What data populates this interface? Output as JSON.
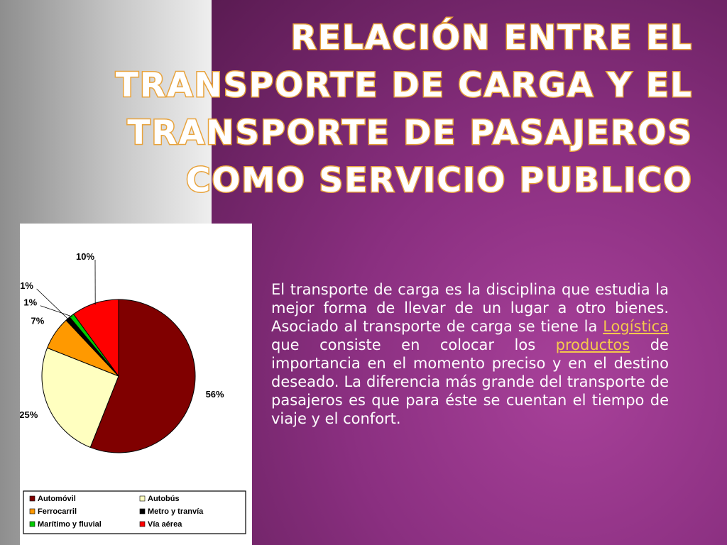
{
  "slide": {
    "title": "Relación entre el transporte de carga y el transporte de pasajeros como servicio publico",
    "body": {
      "part1": "El transporte de carga es la disciplina que estudia la mejor forma de llevar de un lugar a otro bienes. Asociado al transporte de carga se tiene la ",
      "link1": "Logística",
      "part2": " que consiste en colocar los ",
      "link2": "productos",
      "part3": " de importancia en el momento preciso y en el destino deseado. La diferencia más grande del transporte de pasajeros es que para éste se cuentan el tiempo de viaje y el confort."
    }
  },
  "chart_data": {
    "type": "pie",
    "title": "",
    "unit": "%",
    "slices": [
      {
        "name": "Automóvil",
        "value": 56,
        "label": "56%",
        "color": "#800000"
      },
      {
        "name": "Autobús",
        "value": 25,
        "label": "25%",
        "color": "#ffffc0"
      },
      {
        "name": "Ferrocarril",
        "value": 7,
        "label": "7%",
        "color": "#ff9900"
      },
      {
        "name": "Metro y tranvía",
        "value": 1,
        "label": "1%",
        "color": "#000000"
      },
      {
        "name": "Marítimo y fluvial",
        "value": 1,
        "label": "1%",
        "color": "#00cc00"
      },
      {
        "name": "Vía aérea",
        "value": 10,
        "label": "10%",
        "color": "#ff0000"
      }
    ],
    "legend_placement": "bottom"
  }
}
